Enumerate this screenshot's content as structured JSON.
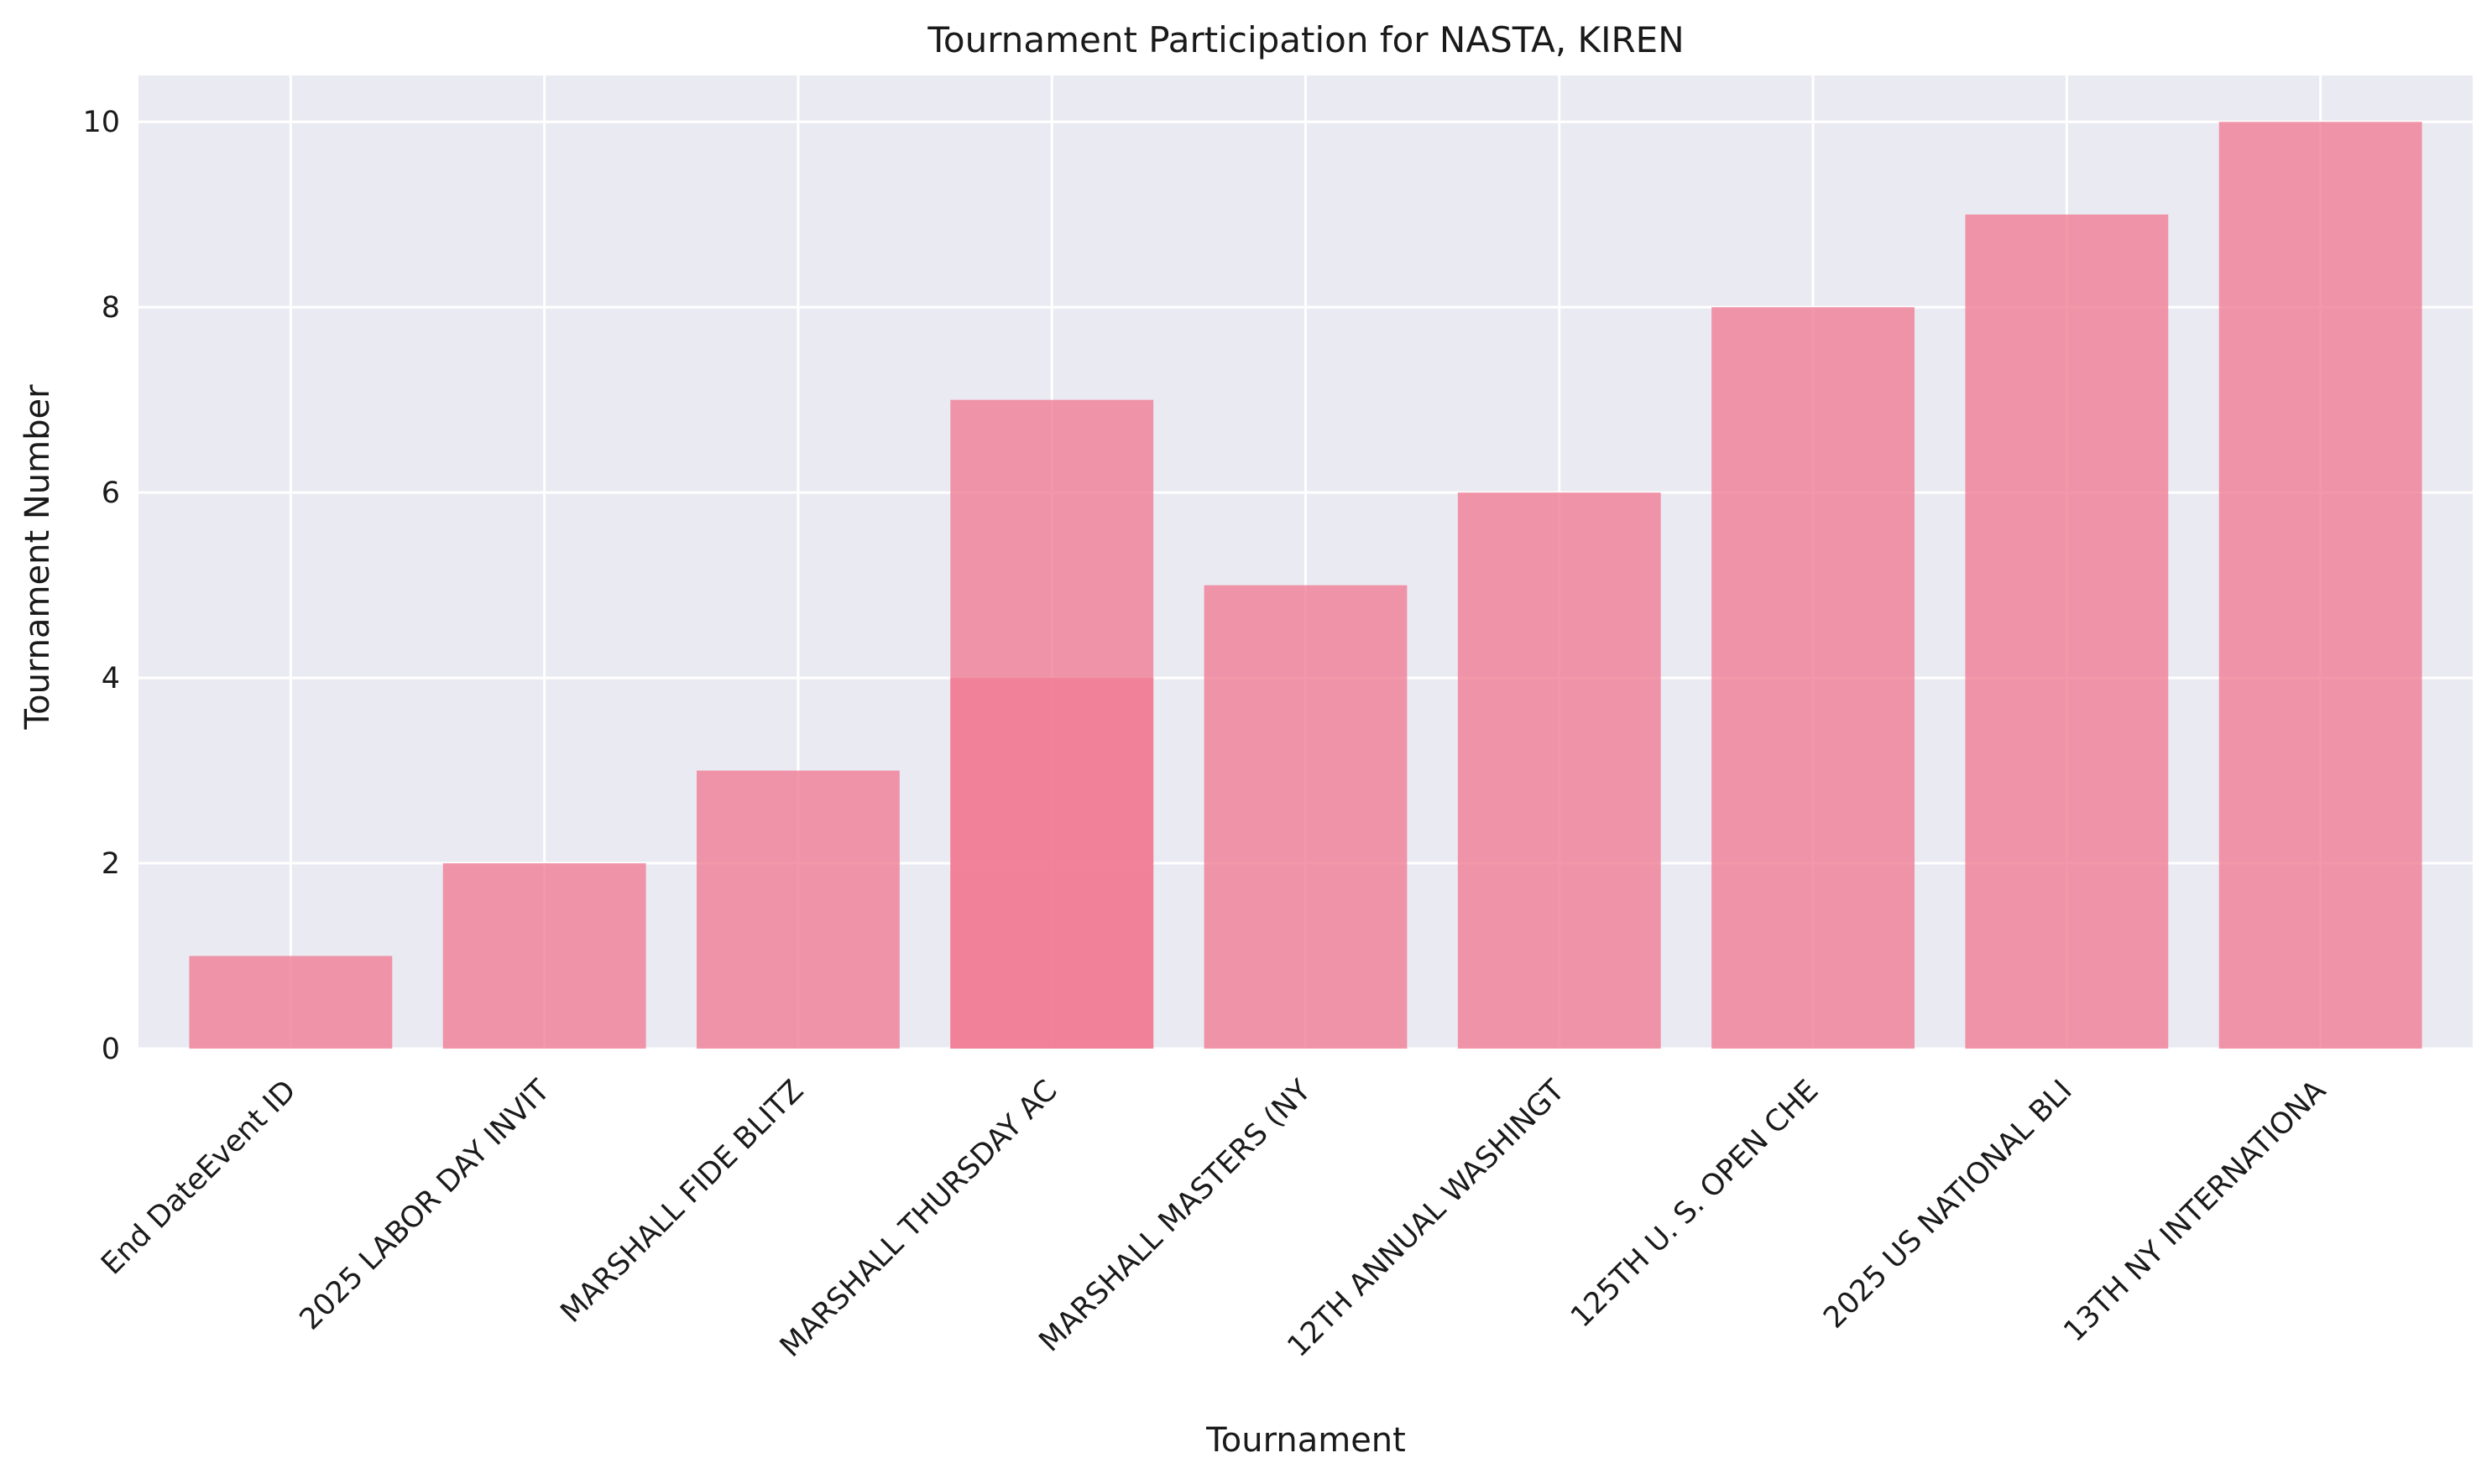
{
  "chart_data": {
    "type": "bar",
    "title": "Tournament Participation for NASTA, KIREN",
    "xlabel": "Tournament",
    "ylabel": "Tournament Number",
    "categories": [
      "End DateEvent ID",
      "2025 LABOR DAY INVIT",
      "MARSHALL FIDE BLITZ",
      "MARSHALL THURSDAY AC",
      "MARSHALL MASTERS (NY",
      "12TH ANNUAL WASHINGT",
      "125TH U. S. OPEN CHE",
      "2025 US NATIONAL BLI",
      "13TH NY INTERNATIONA"
    ],
    "bars": [
      {
        "category": "End DateEvent ID",
        "value": 1
      },
      {
        "category": "2025 LABOR DAY INVIT",
        "value": 2
      },
      {
        "category": "MARSHALL FIDE BLITZ",
        "value": 3
      },
      {
        "category": "MARSHALL THURSDAY AC",
        "value": 4
      },
      {
        "category": "MARSHALL MASTERS (NY",
        "value": 5
      },
      {
        "category": "12TH ANNUAL WASHINGT",
        "value": 6
      },
      {
        "category": "MARSHALL THURSDAY AC",
        "value": 7
      },
      {
        "category": "125TH U. S. OPEN CHE",
        "value": 8
      },
      {
        "category": "2025 US NATIONAL BLI",
        "value": 9
      },
      {
        "category": "13TH NY INTERNATIONA",
        "value": 10
      }
    ],
    "ylim": [
      0,
      10.5
    ],
    "yticks": [
      0,
      2,
      4,
      6,
      8,
      10
    ],
    "grid": true,
    "colors": {
      "bar": "#f07d95",
      "plot_background": "#eaeaf2",
      "grid": "#ffffff"
    }
  }
}
